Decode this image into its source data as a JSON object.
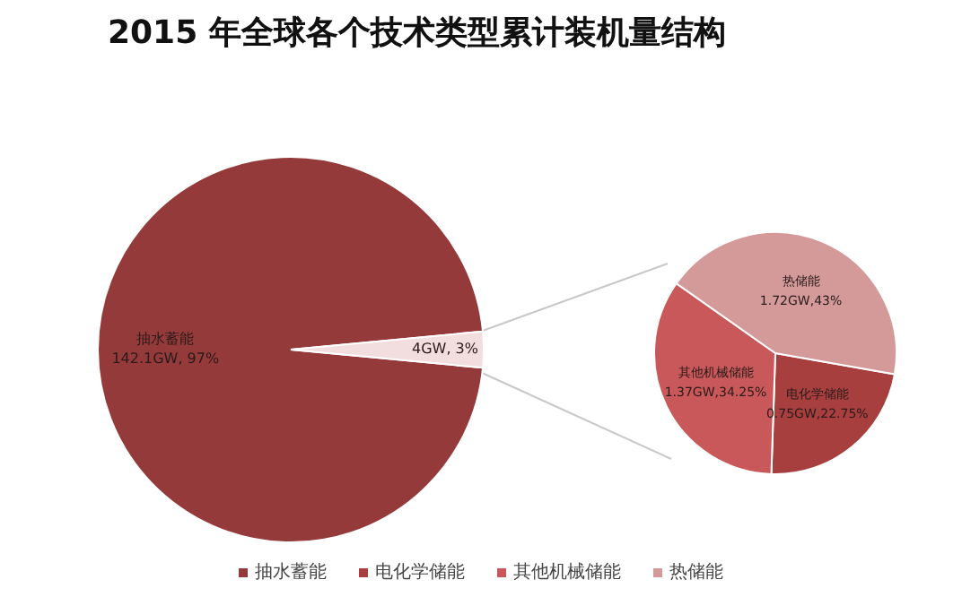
{
  "chart_data": [
    {
      "type": "pie",
      "title": "2015 年全球各个技术类型累计装机量结构",
      "categories": [
        "抽水蓄能",
        null
      ],
      "values": [
        97,
        3
      ],
      "colors": [
        "#953a3a",
        "#f2dede"
      ],
      "value_labels": [
        "142.1GW, 97%",
        "4GW, 3%"
      ],
      "legend": "bottom"
    },
    {
      "type": "pie",
      "categories": [
        "电化学储能",
        "其他机械储能",
        "热储能"
      ],
      "values": [
        22.75,
        34.25,
        43
      ],
      "colors": [
        "#a83f3f",
        "#c8585a",
        "#d49a9a"
      ],
      "value_labels": [
        "0.75GW,22.75%",
        "1.37GW,34.25%",
        "1.72GW,43%"
      ],
      "legend": "bottom"
    }
  ]
}
